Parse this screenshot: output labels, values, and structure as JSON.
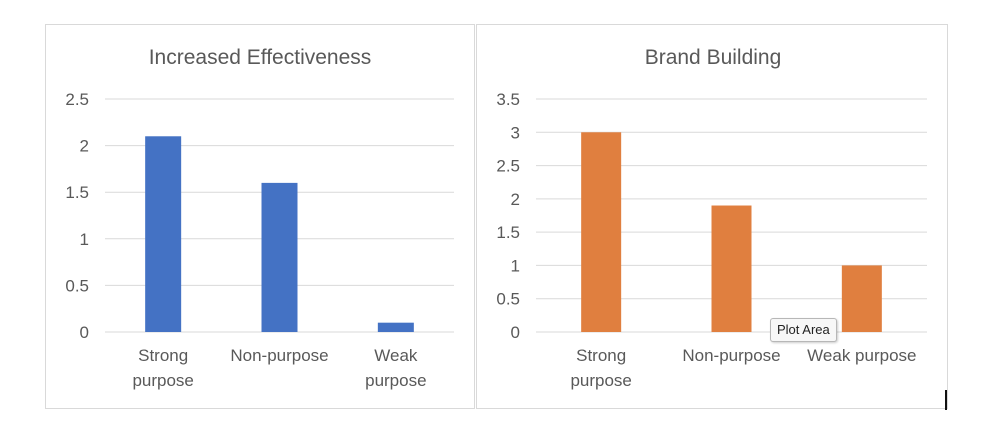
{
  "chart_data": [
    {
      "type": "bar",
      "title": "Increased Effectiveness",
      "categories": [
        [
          "Strong",
          "purpose"
        ],
        [
          "Non-purpose"
        ],
        [
          "Weak",
          "purpose"
        ]
      ],
      "values": [
        2.1,
        1.6,
        0.1
      ],
      "ylim": [
        0,
        2.5
      ],
      "yticks": [
        "0",
        "0.5",
        "1",
        "1.5",
        "2",
        "2.5"
      ],
      "grid": true,
      "color": "#4472c4"
    },
    {
      "type": "bar",
      "title": "Brand Building",
      "categories": [
        [
          "Strong",
          "purpose"
        ],
        [
          "Non-purpose"
        ],
        [
          "Weak purpose"
        ]
      ],
      "values": [
        3.0,
        1.9,
        1.0
      ],
      "ylim": [
        0,
        3.5
      ],
      "yticks": [
        "0",
        "0.5",
        "1",
        "1.5",
        "2",
        "2.5",
        "3",
        "3.5"
      ],
      "grid": true,
      "color": "#e07f3f"
    }
  ],
  "tooltip": {
    "text": "Plot Area"
  }
}
